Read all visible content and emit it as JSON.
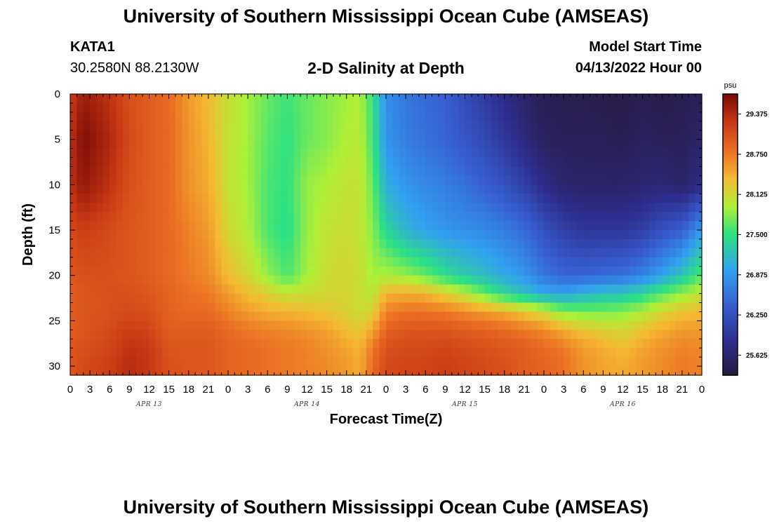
{
  "page": {
    "title": "University of Southern Mississippi Ocean Cube (AMSEAS)",
    "footer_title": "University of Southern Mississippi Ocean Cube (AMSEAS)",
    "station": {
      "id": "KATA1",
      "coordinates": "30.2580N  88.2130W"
    },
    "model_start": {
      "label": "Model Start Time",
      "value": "04/13/2022 Hour 00"
    }
  },
  "chart_data": {
    "type": "heatmap",
    "title": "2-D Salinity at Depth",
    "xlabel": "Forecast Time(Z)",
    "ylabel": "Depth (ft)",
    "x_hours_range": [
      0,
      96
    ],
    "ylim": [
      0,
      31
    ],
    "y_ticks": [
      0,
      5,
      10,
      15,
      20,
      25,
      30
    ],
    "x_tick_labels": [
      "0",
      "3",
      "6",
      "9",
      "12",
      "15",
      "18",
      "21",
      "0",
      "3",
      "6",
      "9",
      "12",
      "15",
      "18",
      "21",
      "0",
      "3",
      "6",
      "9",
      "12",
      "15",
      "18",
      "21",
      "0",
      "3",
      "6",
      "9",
      "12",
      "15",
      "18",
      "21",
      "0"
    ],
    "date_labels": [
      {
        "label": "APR 13",
        "hour": 12
      },
      {
        "label": "APR 14",
        "hour": 36
      },
      {
        "label": "APR 15",
        "hour": 60
      },
      {
        "label": "APR 16",
        "hour": 84
      }
    ],
    "colorbar": {
      "unit": "psu",
      "min": 25.3125,
      "max": 29.6875,
      "tick_labels": [
        "25.625",
        "26.250",
        "26.875",
        "27.500",
        "28.125",
        "28.750",
        "29.375"
      ],
      "tick_values": [
        25.625,
        26.25,
        26.875,
        27.5,
        28.125,
        28.75,
        29.375
      ]
    },
    "depth_levels_ft": [
      0,
      5,
      10,
      15,
      20,
      22,
      24,
      26,
      28,
      30,
      31
    ],
    "salinity_profiles": [
      {
        "hour": 0,
        "values": [
          29.2,
          29.3,
          29.3,
          29.1,
          29.0,
          28.95,
          28.95,
          28.95,
          29.0,
          29.0,
          29.0
        ]
      },
      {
        "hour": 2,
        "values": [
          29.5,
          29.65,
          29.55,
          29.2,
          29.05,
          29.0,
          29.0,
          29.0,
          29.05,
          29.1,
          29.1
        ]
      },
      {
        "hour": 6,
        "values": [
          29.3,
          29.4,
          29.3,
          29.1,
          29.05,
          29.05,
          29.05,
          29.1,
          29.15,
          29.2,
          29.2
        ]
      },
      {
        "hour": 9,
        "values": [
          29.05,
          29.1,
          29.05,
          29.0,
          29.0,
          29.05,
          29.1,
          29.2,
          29.3,
          29.35,
          29.35
        ]
      },
      {
        "hour": 12,
        "values": [
          28.95,
          28.95,
          28.95,
          28.95,
          28.95,
          29.0,
          29.05,
          29.15,
          29.25,
          29.25,
          29.25
        ]
      },
      {
        "hour": 15,
        "values": [
          28.85,
          28.85,
          28.85,
          28.85,
          28.85,
          28.9,
          28.9,
          28.95,
          29.0,
          29.05,
          29.05
        ]
      },
      {
        "hour": 18,
        "values": [
          28.55,
          28.6,
          28.6,
          28.7,
          28.75,
          28.8,
          28.85,
          28.95,
          29.0,
          29.0,
          29.0
        ]
      },
      {
        "hour": 21,
        "values": [
          28.35,
          28.4,
          28.45,
          28.55,
          28.65,
          28.75,
          28.85,
          28.95,
          29.0,
          29.0,
          29.0
        ]
      },
      {
        "hour": 24,
        "values": [
          28.1,
          28.05,
          28.05,
          28.15,
          28.35,
          28.55,
          28.7,
          28.85,
          28.9,
          28.9,
          28.9
        ]
      },
      {
        "hour": 27,
        "values": [
          27.9,
          27.9,
          27.9,
          27.95,
          28.15,
          28.35,
          28.55,
          28.75,
          28.85,
          28.85,
          28.85
        ]
      },
      {
        "hour": 30,
        "values": [
          27.7,
          27.65,
          27.6,
          27.6,
          27.85,
          28.2,
          28.45,
          28.7,
          28.8,
          28.8,
          28.8
        ]
      },
      {
        "hour": 33,
        "values": [
          27.55,
          27.5,
          27.5,
          27.45,
          27.6,
          28.05,
          28.4,
          28.65,
          28.75,
          28.75,
          28.75
        ]
      },
      {
        "hour": 36,
        "values": [
          27.7,
          27.7,
          27.85,
          27.85,
          27.9,
          28.1,
          28.35,
          28.6,
          28.7,
          28.7,
          28.7
        ]
      },
      {
        "hour": 39,
        "values": [
          27.8,
          27.8,
          27.95,
          28.05,
          28.1,
          28.15,
          28.3,
          28.5,
          28.6,
          28.65,
          28.65
        ]
      },
      {
        "hour": 42,
        "values": [
          27.9,
          27.95,
          28.05,
          28.1,
          28.15,
          28.15,
          28.2,
          28.35,
          28.5,
          28.55,
          28.55
        ]
      },
      {
        "hour": 44,
        "values": [
          27.95,
          28.0,
          28.05,
          28.05,
          28.1,
          28.1,
          28.1,
          28.25,
          28.4,
          28.45,
          28.45
        ]
      },
      {
        "hour": 46,
        "values": [
          27.5,
          27.55,
          27.7,
          27.8,
          27.9,
          28.0,
          28.2,
          28.5,
          28.75,
          28.85,
          28.85
        ]
      },
      {
        "hour": 48,
        "values": [
          26.8,
          26.85,
          27.05,
          27.4,
          27.95,
          28.4,
          28.7,
          28.9,
          29.05,
          29.1,
          29.1
        ]
      },
      {
        "hour": 51,
        "values": [
          26.6,
          26.65,
          26.85,
          27.1,
          27.85,
          28.45,
          28.8,
          29.0,
          29.1,
          29.15,
          29.15
        ]
      },
      {
        "hour": 54,
        "values": [
          26.5,
          26.55,
          26.75,
          26.95,
          27.7,
          28.4,
          28.8,
          29.0,
          29.1,
          29.15,
          29.15
        ]
      },
      {
        "hour": 57,
        "values": [
          26.4,
          26.45,
          26.65,
          26.85,
          27.45,
          28.2,
          28.75,
          29.0,
          29.15,
          29.2,
          29.2
        ]
      },
      {
        "hour": 60,
        "values": [
          26.2,
          26.3,
          26.55,
          26.8,
          27.3,
          28.0,
          28.65,
          28.95,
          29.1,
          29.15,
          29.15
        ]
      },
      {
        "hour": 63,
        "values": [
          26.0,
          26.15,
          26.4,
          26.75,
          27.15,
          27.7,
          28.55,
          28.9,
          29.05,
          29.1,
          29.1
        ]
      },
      {
        "hour": 66,
        "values": [
          25.8,
          25.95,
          26.25,
          26.65,
          27.0,
          27.4,
          28.45,
          28.85,
          29.0,
          29.05,
          29.05
        ]
      },
      {
        "hour": 69,
        "values": [
          25.6,
          25.75,
          26.05,
          26.5,
          26.85,
          27.2,
          28.3,
          28.75,
          28.95,
          28.95,
          28.95
        ]
      },
      {
        "hour": 72,
        "values": [
          25.45,
          25.55,
          25.8,
          26.25,
          26.6,
          27.0,
          28.1,
          28.65,
          28.85,
          28.9,
          28.9
        ]
      },
      {
        "hour": 75,
        "values": [
          25.45,
          25.5,
          25.65,
          26.05,
          26.45,
          26.95,
          27.8,
          28.45,
          28.75,
          28.8,
          28.8
        ]
      },
      {
        "hour": 78,
        "values": [
          25.45,
          25.5,
          25.6,
          25.95,
          26.45,
          27.1,
          27.75,
          28.3,
          28.55,
          28.6,
          28.6
        ]
      },
      {
        "hour": 81,
        "values": [
          25.4,
          25.5,
          25.6,
          25.95,
          26.5,
          27.2,
          27.75,
          28.2,
          28.45,
          28.5,
          28.5
        ]
      },
      {
        "hour": 84,
        "values": [
          25.4,
          25.45,
          25.6,
          25.95,
          26.55,
          27.25,
          27.8,
          28.15,
          28.35,
          28.45,
          28.45
        ]
      },
      {
        "hour": 87,
        "values": [
          25.45,
          25.55,
          25.65,
          26.05,
          26.7,
          27.4,
          27.95,
          28.3,
          28.5,
          28.55,
          28.55
        ]
      },
      {
        "hour": 90,
        "values": [
          25.4,
          25.5,
          25.7,
          26.25,
          26.95,
          27.65,
          28.15,
          28.45,
          28.6,
          28.65,
          28.65
        ]
      },
      {
        "hour": 93,
        "values": [
          25.45,
          25.5,
          25.6,
          26.4,
          27.25,
          27.85,
          28.3,
          28.55,
          28.7,
          28.75,
          28.75
        ]
      },
      {
        "hour": 96,
        "values": [
          25.5,
          25.6,
          25.8,
          26.9,
          27.65,
          28.05,
          28.35,
          28.55,
          28.65,
          28.7,
          28.7
        ]
      }
    ]
  }
}
